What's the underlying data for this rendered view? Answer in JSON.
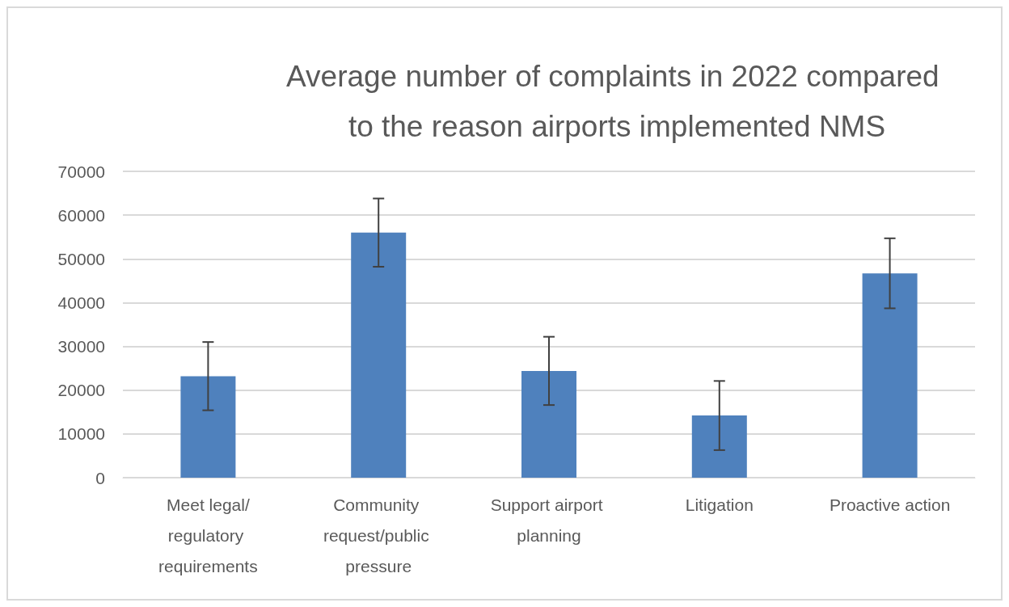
{
  "chart_data": {
    "type": "bar",
    "title": "Average number of complaints in 2022 compared to the reason airports implemented NMS",
    "categories": [
      "Meet legal/regulatory requirements",
      "Community request/public pressure",
      "Support airport planning",
      "Litigation",
      "Proactive action"
    ],
    "values": [
      23200,
      56000,
      24400,
      14200,
      46700
    ],
    "errors": [
      7800,
      7800,
      7800,
      7900,
      8000
    ],
    "color": "#4f81bd",
    "ylim": [
      0,
      70000
    ],
    "yticks": [
      0,
      10000,
      20000,
      30000,
      40000,
      50000,
      60000,
      70000
    ],
    "grid": "y"
  }
}
